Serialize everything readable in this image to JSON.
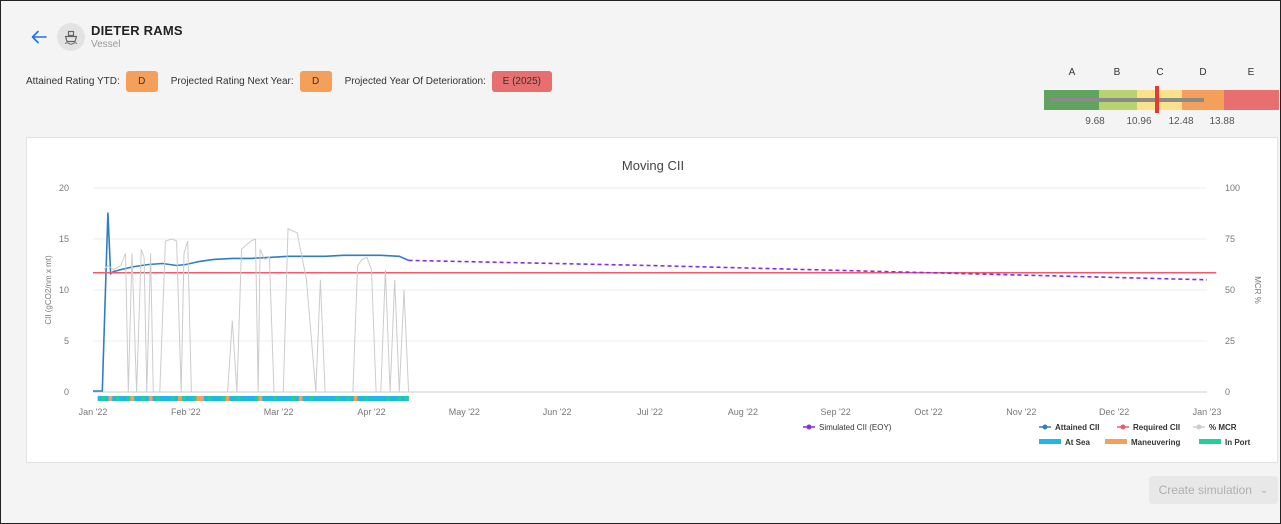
{
  "header": {
    "vessel_name": "DIETER RAMS",
    "vessel_type": "Vessel",
    "back_icon": "arrow-left-icon",
    "avatar_icon": "ship-icon"
  },
  "ratings": {
    "attained_label": "Attained Rating YTD:",
    "attained_value": "D",
    "projected_label": "Projected Rating Next Year:",
    "projected_value": "D",
    "deterioration_label": "Projected Year Of Deterioration:",
    "deterioration_value": "E (2025)"
  },
  "rating_scale": {
    "letters": [
      "A",
      "B",
      "C",
      "D",
      "E"
    ],
    "boundaries": [
      "9.68",
      "10.96",
      "12.48",
      "13.88"
    ],
    "colors": [
      "#5fa35f",
      "#b7d26e",
      "#fbe28a",
      "#f5a05a",
      "#e76f6f"
    ]
  },
  "chart_data": {
    "type": "line",
    "title": "Moving CII",
    "ylabel": "CII (gCO2/nm x mt)",
    "y2label": "MCR %",
    "ylim": [
      0,
      20
    ],
    "y2lim": [
      0,
      100
    ],
    "yticks": [
      "0",
      "5",
      "10",
      "15",
      "20"
    ],
    "y2ticks": [
      "0",
      "25",
      "50",
      "75",
      "100"
    ],
    "xticks": [
      "Jan '22",
      "Feb '22",
      "Mar '22",
      "Apr '22",
      "May '22",
      "Jun '22",
      "Jul '22",
      "Aug '22",
      "Sep '22",
      "Oct '22",
      "Nov '22",
      "Dec '22",
      "Jan '23"
    ],
    "series": [
      {
        "name": "Attained CII",
        "color": "#2f7ec1",
        "x_month": [
          0,
          0.1,
          0.16,
          0.19,
          0.22,
          0.3,
          0.45,
          0.6,
          0.75,
          0.9,
          1.0,
          1.15,
          1.3,
          1.5,
          1.7,
          1.9,
          2.1,
          2.3,
          2.5,
          2.7,
          2.9,
          3.1,
          3.3,
          3.4
        ],
        "y": [
          0.1,
          0.1,
          17.6,
          11.6,
          11.8,
          12.0,
          12.3,
          12.5,
          12.6,
          12.4,
          12.5,
          12.8,
          13.0,
          13.1,
          13.1,
          13.2,
          13.3,
          13.3,
          13.3,
          13.4,
          13.4,
          13.4,
          13.3,
          12.9
        ]
      },
      {
        "name": "Required CII",
        "color": "#ef5a6f",
        "x_month": [
          0,
          12.1
        ],
        "y": [
          11.7,
          11.7
        ]
      },
      {
        "name": "Simulated CII (EOY)",
        "color": "#8a2be2",
        "x_month": [
          3.4,
          6,
          9,
          12
        ],
        "y": [
          12.9,
          12.4,
          11.7,
          11.0
        ]
      },
      {
        "name": "% MCR",
        "color": "#cccccc",
        "x_month": [
          0.12,
          0.16,
          0.22,
          0.3,
          0.35,
          0.38,
          0.42,
          0.47,
          0.52,
          0.55,
          0.58,
          0.62,
          0.65,
          0.72,
          0.78,
          0.85,
          0.9,
          0.95,
          0.98,
          1.02,
          1.06,
          1.12,
          1.2,
          1.3,
          1.38,
          1.45,
          1.5,
          1.55,
          1.6,
          1.65,
          1.7,
          1.75,
          1.78,
          1.8,
          1.85,
          1.9,
          1.95,
          2.0,
          2.05,
          2.1,
          2.2,
          2.3,
          2.4,
          2.45,
          2.5,
          2.55,
          2.6,
          2.65,
          2.7,
          2.75,
          2.8,
          2.85,
          2.9,
          2.95,
          3.0,
          3.05,
          3.1,
          3.15,
          3.2,
          3.25,
          3.3,
          3.35,
          3.4
        ],
        "y": [
          60,
          62,
          60,
          62,
          68,
          0,
          68,
          0,
          70,
          66,
          0,
          68,
          0,
          0,
          74,
          75,
          74,
          0,
          68,
          74,
          0,
          0,
          0,
          0,
          0,
          0,
          35,
          0,
          70,
          72,
          74,
          75,
          0,
          70,
          65,
          66,
          0,
          0,
          0,
          80,
          78,
          55,
          0,
          55,
          0,
          0,
          0,
          0,
          0,
          0,
          0,
          62,
          65,
          66,
          60,
          0,
          0,
          60,
          0,
          55,
          0,
          50,
          0
        ]
      }
    ],
    "operation_bar": {
      "labels": [
        "At Sea",
        "Maneuvering",
        "In Port"
      ],
      "colors": [
        "#1eb8e8",
        "#f5a05a",
        "#1fd09a"
      ],
      "pattern": [
        0,
        2,
        0,
        1,
        0,
        2,
        0,
        0,
        2,
        1,
        0,
        0,
        2,
        0,
        1,
        0,
        2,
        0,
        0,
        0,
        2,
        0,
        1,
        2,
        0,
        0,
        2,
        1,
        1,
        0,
        2,
        0,
        0,
        0,
        2,
        1,
        0,
        0,
        2,
        0,
        0,
        0,
        0,
        2,
        1,
        0,
        0,
        0,
        2,
        0,
        0,
        0,
        0,
        2,
        0,
        1,
        0,
        0,
        2,
        0,
        0,
        0,
        0,
        0,
        0,
        2,
        0,
        0,
        2,
        0,
        1,
        0,
        0,
        2,
        0,
        0,
        0,
        0,
        0,
        2,
        0,
        0,
        2,
        0,
        2
      ]
    },
    "legend": "bottom-right",
    "grid": true
  },
  "create_simulation": {
    "label": "Create simulation",
    "icon": "chevron-down-icon"
  }
}
